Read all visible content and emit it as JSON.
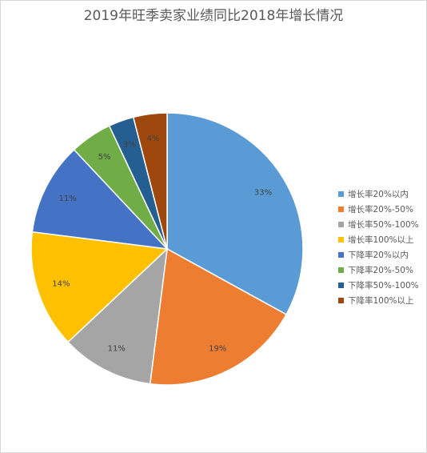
{
  "chart_data": {
    "type": "pie",
    "title": "2019年旺季卖家业绩同比2018年增长情况",
    "legend_position": "right",
    "start_angle_deg": 0,
    "direction": "clockwise",
    "slices": [
      {
        "label": "增长率20%以内",
        "value": 33,
        "value_label": "33%",
        "color": "#5b9bd5"
      },
      {
        "label": "增长率20%-50%",
        "value": 19,
        "value_label": "19%",
        "color": "#ed7d31"
      },
      {
        "label": "增长率50%-100%",
        "value": 11,
        "value_label": "11%",
        "color": "#a5a5a5"
      },
      {
        "label": "增长率100%以上",
        "value": 14,
        "value_label": "14%",
        "color": "#ffc000"
      },
      {
        "label": "下降率20%以内",
        "value": 11,
        "value_label": "11%",
        "color": "#4472c4"
      },
      {
        "label": "下降率20%-50%",
        "value": 5,
        "value_label": "5%",
        "color": "#70ad47"
      },
      {
        "label": "下降率50%-100%",
        "value": 3,
        "value_label": "3%",
        "color": "#255e91"
      },
      {
        "label": "下降率100%以上",
        "value": 4,
        "value_label": "4%",
        "color": "#9e480e"
      }
    ]
  }
}
